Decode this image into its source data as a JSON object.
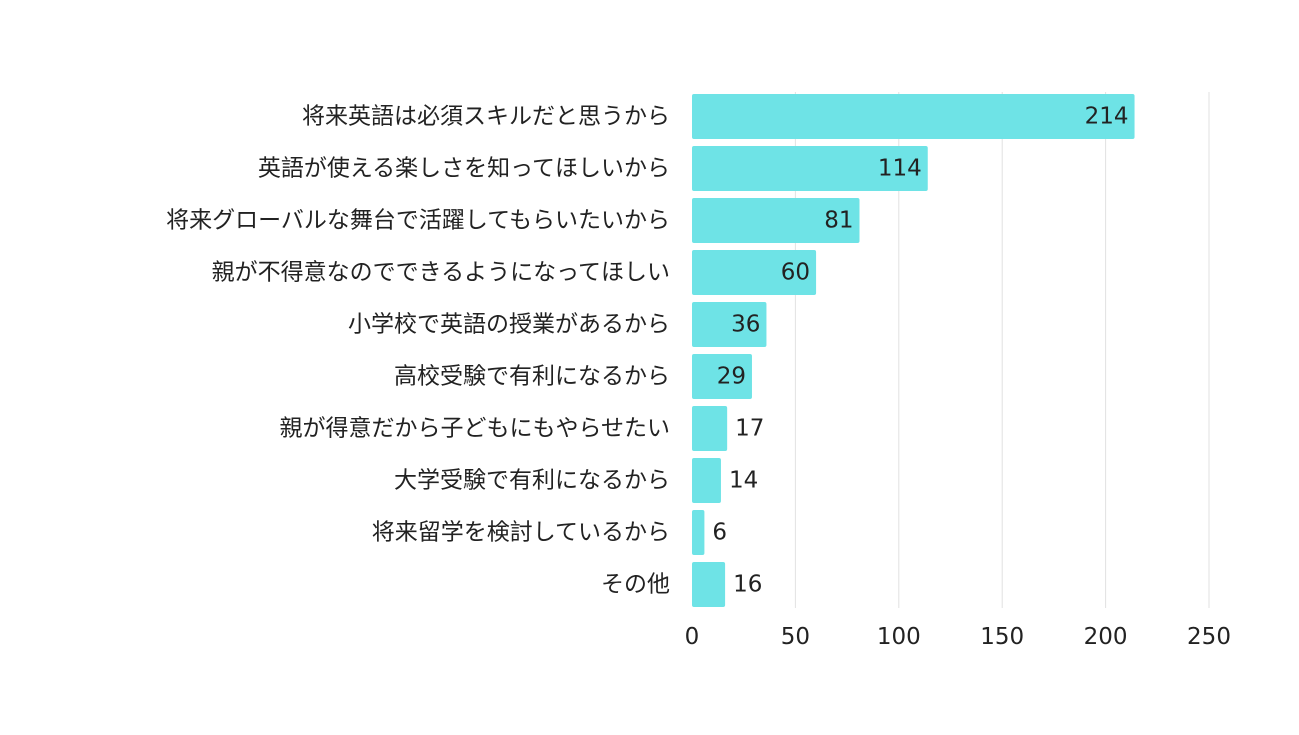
{
  "chart_data": {
    "type": "bar",
    "orientation": "horizontal",
    "title": "",
    "xlabel": "",
    "ylabel": "",
    "categories": [
      "将来英語は必須スキルだと思うから",
      "英語が使える楽しさを知ってほしいから",
      "将来グローバルな舞台で活躍してもらいたいから",
      "親が不得意なのでできるようになってほしい",
      "小学校で英語の授業があるから",
      "高校受験で有利になるから",
      "親が得意だから子どもにもやらせたい",
      "大学受験で有利になるから",
      "将来留学を検討しているから",
      "その他"
    ],
    "values": [
      214,
      114,
      81,
      60,
      36,
      29,
      17,
      14,
      6,
      16
    ],
    "xlim": [
      0,
      250
    ],
    "xticks": [
      0,
      50,
      100,
      150,
      200,
      250
    ],
    "grid": true,
    "legend": "none",
    "colors": {
      "bar": "#6ee3e6",
      "text": "#222222",
      "grid": "#e2e2e2"
    }
  }
}
